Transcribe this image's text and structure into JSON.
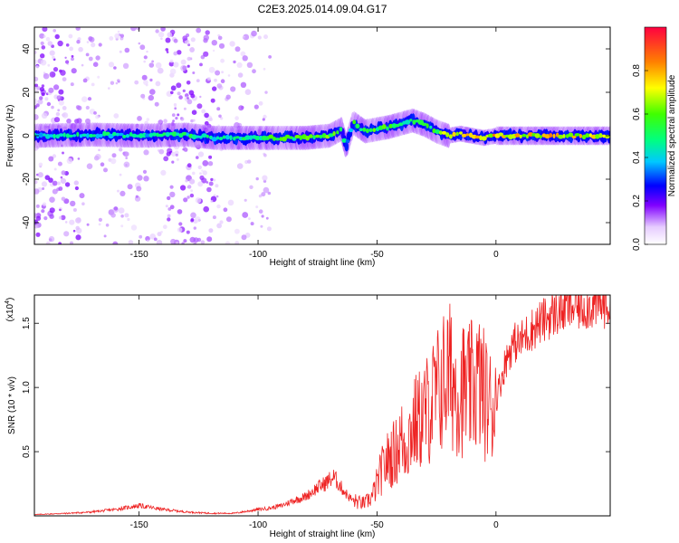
{
  "title": "C2E3.2025.014.09.04.G17",
  "chart_data": [
    {
      "type": "heatmap",
      "xlabel": "Height of straight line (km)",
      "ylabel": "Frequency (Hz)",
      "xlim": [
        -194,
        48
      ],
      "ylim": [
        -50,
        50
      ],
      "x_ticks": [
        -150,
        -100,
        -50,
        0
      ],
      "y_ticks": [
        -40,
        -20,
        0,
        20,
        40
      ],
      "x_tick_labels": [
        "-150",
        "-100",
        "-50",
        "0"
      ],
      "y_tick_labels": [
        "-40",
        "-20",
        "0",
        "20",
        "40"
      ],
      "colorbar": {
        "label": "Normalized spectral amplitude",
        "range": [
          0,
          1
        ],
        "ticks": [
          0.0,
          0.2,
          0.4,
          0.6,
          0.8
        ],
        "tick_labels": [
          "0.0",
          "0.2",
          "0.4",
          "0.6",
          "0.8"
        ]
      },
      "ridge": {
        "description_values": "frequency peak (Hz) vs height (km)",
        "x": [
          -194,
          -170,
          -150,
          -130,
          -118,
          -100,
          -80,
          -70,
          -65,
          -63,
          -60,
          -55,
          -45,
          -35,
          -30,
          -25,
          -20,
          -15,
          -10,
          -5,
          0,
          10,
          20,
          48
        ],
        "y": [
          0,
          0.5,
          0,
          0.5,
          -1,
          -1,
          -1,
          0,
          3,
          -5,
          6,
          2,
          4,
          7,
          5,
          2,
          0,
          1,
          0,
          -1,
          0,
          0,
          0,
          0
        ],
        "amplitude": [
          0.45,
          0.5,
          0.45,
          0.5,
          0.5,
          0.55,
          0.6,
          0.65,
          0.6,
          0.4,
          0.55,
          0.55,
          0.6,
          0.55,
          0.55,
          0.6,
          0.7,
          0.85,
          0.8,
          0.75,
          0.8,
          0.75,
          0.8,
          0.7
        ]
      }
    },
    {
      "type": "line",
      "xlabel": "Height of straight line (km)",
      "ylabel": "SNR (10 * v/v)",
      "multiplier_label": "(x10",
      "multiplier_exp": "4",
      "xlim": [
        -194,
        48
      ],
      "ylim": [
        0,
        1.72
      ],
      "x_ticks": [
        -150,
        -100,
        -50,
        0
      ],
      "y_ticks": [
        0.5,
        1.0,
        1.5
      ],
      "x_tick_labels": [
        "-150",
        "-100",
        "-50",
        "0"
      ],
      "y_tick_labels": [
        "0.5",
        "1.0",
        "1.5"
      ],
      "color": "#ee2222",
      "series": [
        {
          "x": [
            -194,
            -180,
            -170,
            -160,
            -150,
            -140,
            -130,
            -120,
            -110,
            -100,
            -95,
            -90,
            -85,
            -80,
            -75,
            -72,
            -70,
            -68,
            -65,
            -62,
            -60,
            -57,
            -55,
            -52,
            -50,
            -48,
            -45,
            -42,
            -40,
            -38,
            -35,
            -32,
            -30,
            -28,
            -25,
            -22,
            -20,
            -18,
            -16,
            -15,
            -14,
            -12,
            -10,
            -8,
            -6,
            -5,
            -4,
            -2,
            0,
            2,
            4,
            6,
            8,
            10,
            12,
            15,
            18,
            20,
            22,
            25,
            28,
            30,
            35,
            40,
            48
          ],
          "y": [
            0.01,
            0.02,
            0.03,
            0.05,
            0.08,
            0.05,
            0.03,
            0.02,
            0.02,
            0.05,
            0.06,
            0.08,
            0.12,
            0.15,
            0.22,
            0.25,
            0.28,
            0.3,
            0.22,
            0.15,
            0.12,
            0.1,
            0.1,
            0.15,
            0.25,
            0.35,
            0.45,
            0.5,
            0.6,
            0.55,
            0.7,
            0.75,
            0.8,
            0.85,
            0.95,
            1.05,
            1.1,
            1.05,
            1.0,
            0.95,
            1.0,
            0.95,
            1.0,
            1.05,
            1.0,
            0.95,
            0.9,
            0.85,
            0.9,
            1.05,
            1.2,
            1.3,
            1.35,
            1.35,
            1.4,
            1.45,
            1.5,
            1.52,
            1.55,
            1.58,
            1.6,
            1.62,
            1.63,
            1.64,
            1.65
          ]
        }
      ]
    }
  ]
}
